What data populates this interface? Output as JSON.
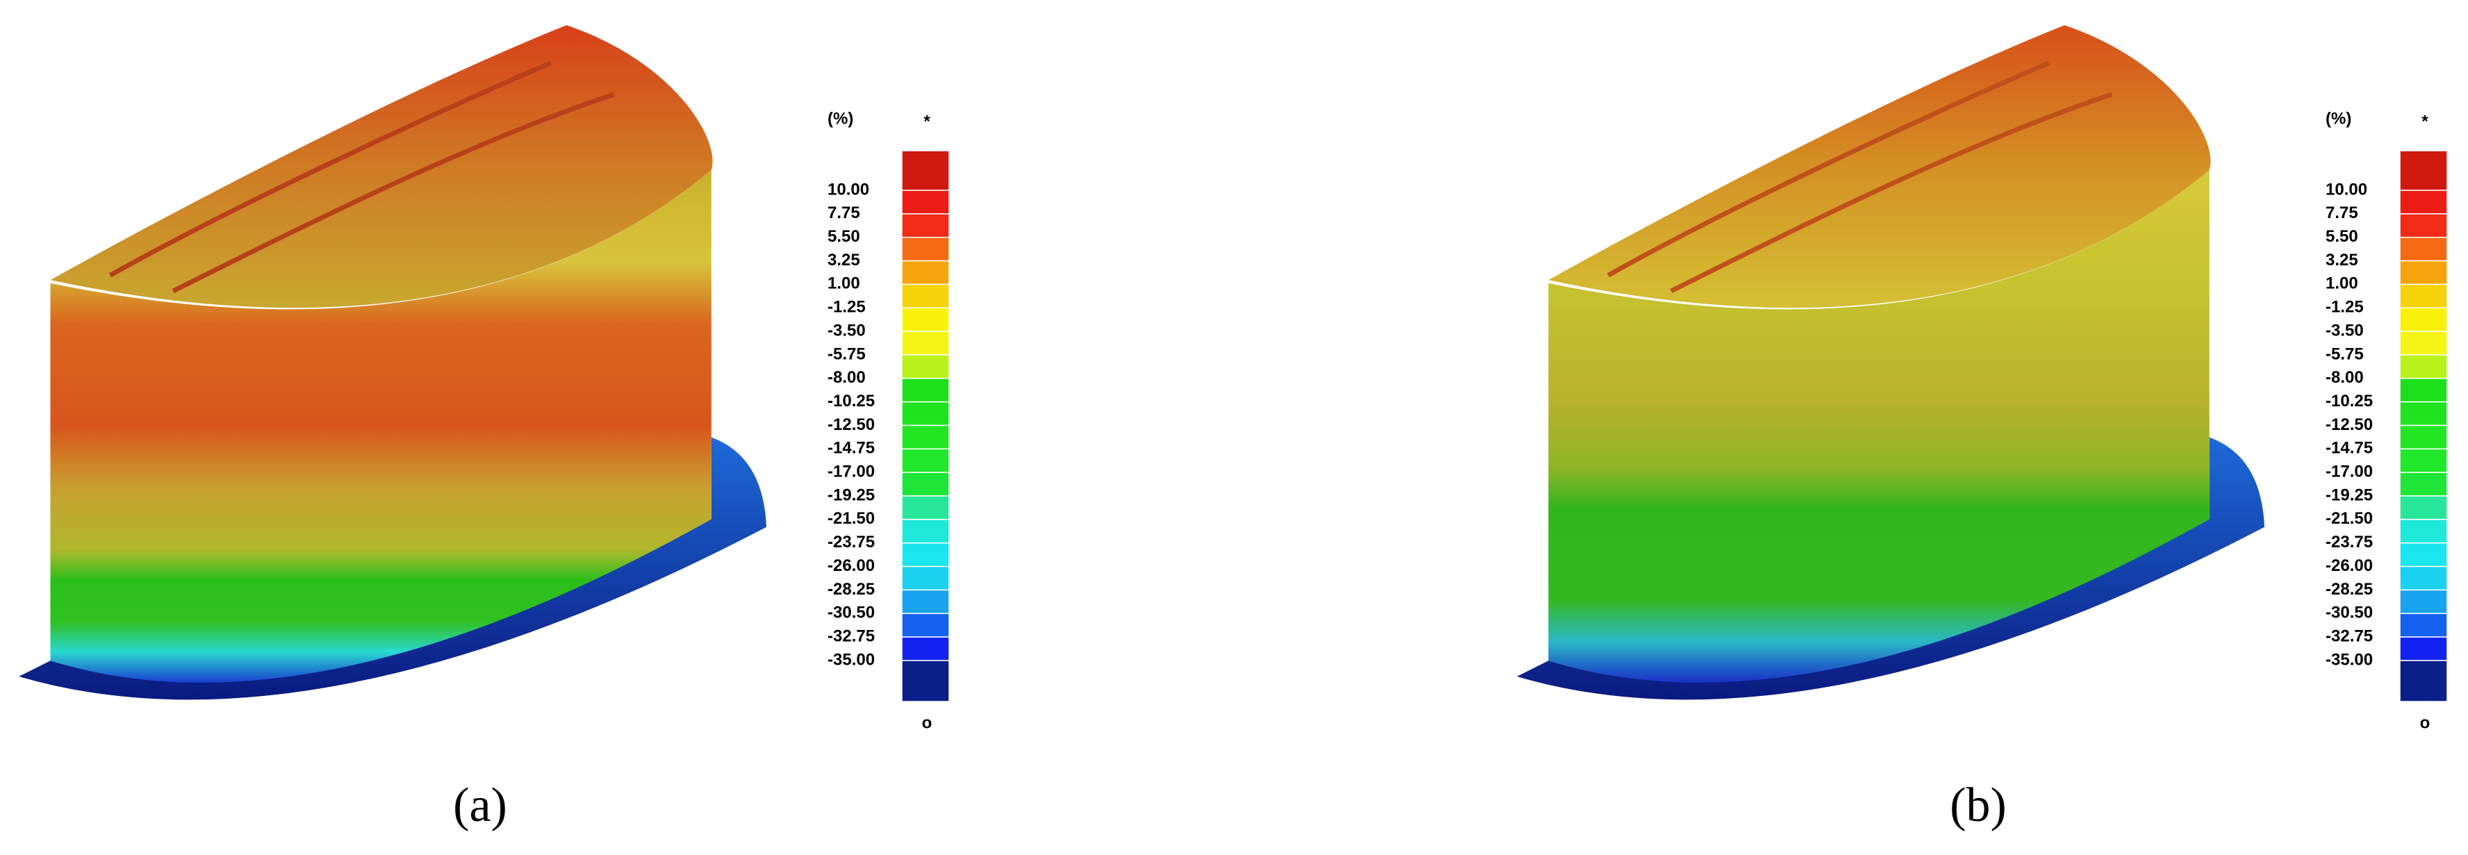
{
  "panels": [
    {
      "caption": "(a)",
      "legend": {
        "unit": "(%)",
        "top": "*",
        "bottom": "o",
        "labels": [
          "10.00",
          "7.75",
          "5.50",
          "3.25",
          "1.00",
          "-1.25",
          "-3.50",
          "-5.75",
          "-8.00",
          "-10.25",
          "-12.50",
          "-14.75",
          "-17.00",
          "-19.25",
          "-21.50",
          "-23.75",
          "-26.00",
          "-28.25",
          "-30.50",
          "-32.75",
          "-35.00"
        ]
      }
    },
    {
      "caption": "(b)",
      "legend": {
        "unit": "(%)",
        "top": "*",
        "bottom": "o",
        "labels": [
          "10.00",
          "7.75",
          "5.50",
          "3.25",
          "1.00",
          "-1.25",
          "-3.50",
          "-5.75",
          "-8.00",
          "-10.25",
          "-12.50",
          "-14.75",
          "-17.00",
          "-19.25",
          "-21.50",
          "-23.75",
          "-26.00",
          "-28.25",
          "-30.50",
          "-32.75",
          "-35.00"
        ]
      }
    }
  ]
}
